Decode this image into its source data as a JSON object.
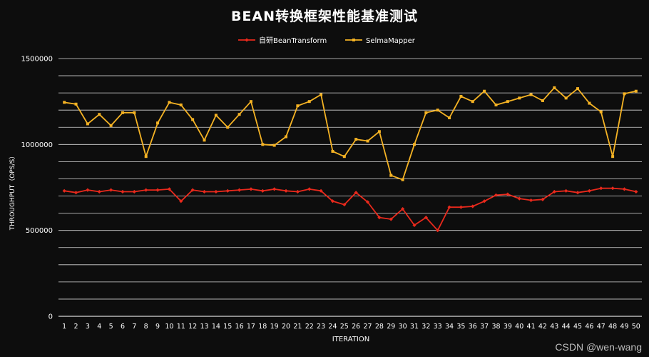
{
  "chart_data": {
    "type": "line",
    "title": "BEAN转换框架性能基准测试",
    "xlabel": "ITERATION",
    "ylabel": "THROUGHPUT（OPS/S）",
    "ylim": [
      0,
      1500000
    ],
    "yticks": [
      0,
      500000,
      1000000,
      1500000
    ],
    "ytick_labels": [
      "0",
      "500000",
      "1000000",
      "1500000"
    ],
    "grid": "horizontal",
    "legend": "top-center",
    "categories": [
      "1",
      "2",
      "3",
      "4",
      "5",
      "6",
      "7",
      "8",
      "9",
      "10",
      "11",
      "12",
      "13",
      "14",
      "15",
      "16",
      "17",
      "18",
      "19",
      "20",
      "21",
      "22",
      "23",
      "24",
      "25",
      "26",
      "27",
      "28",
      "29",
      "30",
      "31",
      "32",
      "33",
      "34",
      "35",
      "36",
      "37",
      "38",
      "39",
      "40",
      "41",
      "42",
      "43",
      "44",
      "45",
      "46",
      "47",
      "48",
      "49",
      "50"
    ],
    "series": [
      {
        "name": "自研BeanTransform",
        "color": "#e8291c",
        "values": [
          730000,
          720000,
          735000,
          725000,
          735000,
          725000,
          725000,
          735000,
          735000,
          740000,
          670000,
          735000,
          725000,
          725000,
          730000,
          735000,
          740000,
          730000,
          740000,
          730000,
          725000,
          740000,
          730000,
          670000,
          650000,
          720000,
          665000,
          575000,
          565000,
          625000,
          530000,
          575000,
          500000,
          635000,
          635000,
          640000,
          670000,
          705000,
          710000,
          685000,
          675000,
          680000,
          725000,
          730000,
          720000,
          730000,
          745000,
          745000,
          740000,
          725000
        ]
      },
      {
        "name": "SelmaMapper",
        "color": "#f5b324",
        "values": [
          1245000,
          1235000,
          1120000,
          1175000,
          1110000,
          1185000,
          1185000,
          930000,
          1125000,
          1245000,
          1230000,
          1145000,
          1025000,
          1170000,
          1100000,
          1175000,
          1250000,
          1000000,
          995000,
          1045000,
          1225000,
          1250000,
          1290000,
          960000,
          930000,
          1030000,
          1020000,
          1075000,
          820000,
          795000,
          1000000,
          1185000,
          1200000,
          1155000,
          1280000,
          1250000,
          1310000,
          1230000,
          1250000,
          1270000,
          1290000,
          1255000,
          1330000,
          1270000,
          1325000,
          1240000,
          1190000,
          930000,
          1295000,
          1310000
        ]
      }
    ]
  },
  "watermark": "CSDN @wen-wang"
}
